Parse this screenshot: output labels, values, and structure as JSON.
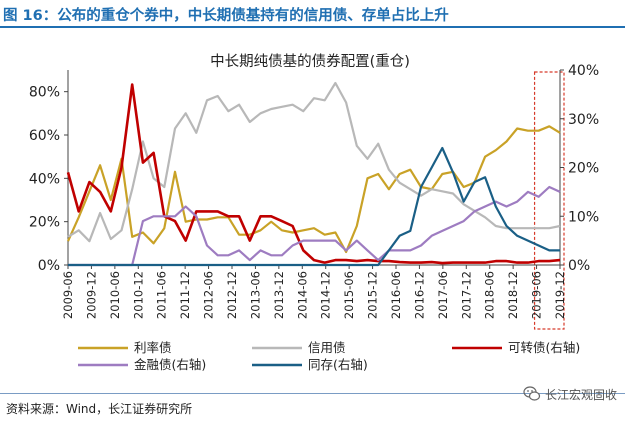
{
  "header": {
    "title": "图 16：公布的重仓个券中，中长期债基持有的信用债、存单占比上升"
  },
  "footer": {
    "source": "资料来源：Wind，长江证券研究所",
    "brand": "长江宏观固收",
    "brand_icon": "wechat-icon"
  },
  "colors": {
    "title_blue": "#1f6fb2",
    "rate_bond": "#c9a227",
    "credit_bond": "#b8b8b8",
    "convertible": "#c00000",
    "financial": "#9e7cc1",
    "ncd": "#1a5f86",
    "highlight_box": "#d63a2a"
  },
  "chart_data": {
    "type": "line",
    "title": "中长期纯债基的债券配置(重仓)",
    "x_tick_labels": [
      "2009-06",
      "2009-12",
      "2010-06",
      "2010-12",
      "2011-06",
      "2011-12",
      "2012-06",
      "2012-12",
      "2013-06",
      "2013-12",
      "2014-06",
      "2014-12",
      "2015-06",
      "2015-12",
      "2016-06",
      "2016-12",
      "2017-06",
      "2017-12",
      "2018-06",
      "2018-12",
      "2019-06",
      "2019-12"
    ],
    "y_left_ticks": [
      "0%",
      "20%",
      "40%",
      "60%",
      "80%"
    ],
    "y_right_ticks": [
      "0%",
      "10%",
      "20%",
      "30%",
      "40%"
    ],
    "y_left_range": [
      0,
      90
    ],
    "y_right_range": [
      0,
      40
    ],
    "grid": false,
    "legend_position": "bottom",
    "highlight_range": [
      "2019-06",
      "2019-12"
    ],
    "series": [
      {
        "name": "利率债",
        "axis": "left",
        "color": "#c9a227",
        "values": [
          11,
          22,
          34,
          46,
          30,
          49,
          13,
          15,
          10,
          17,
          43,
          20,
          21,
          21,
          22,
          22,
          14,
          14,
          16,
          20,
          16,
          15,
          16,
          17,
          14,
          15,
          6,
          18,
          40,
          42,
          35,
          42,
          44,
          36,
          35,
          42,
          43,
          36,
          38,
          50,
          53,
          57,
          63,
          62,
          62,
          64,
          61
        ]
      },
      {
        "name": "信用债",
        "axis": "left",
        "color": "#b8b8b8",
        "values": [
          13,
          16,
          11,
          24,
          12,
          16,
          35,
          57,
          40,
          36,
          63,
          70,
          61,
          76,
          78,
          71,
          74,
          66,
          70,
          72,
          73,
          74,
          71,
          77,
          76,
          84,
          75,
          55,
          49,
          56,
          44,
          38,
          35,
          32,
          35,
          34,
          33,
          28,
          25,
          22,
          18,
          17,
          17,
          17,
          17,
          17,
          18
        ]
      },
      {
        "name": "可转债(右轴)",
        "axis": "right",
        "color": "#c00000",
        "values": [
          19,
          11,
          17,
          15,
          11,
          20,
          37,
          21,
          23,
          10,
          9,
          5,
          11,
          11,
          11,
          10,
          10,
          5,
          10,
          10,
          9,
          8,
          3,
          1,
          0.5,
          1,
          1,
          0.8,
          1,
          0.8,
          0.8,
          0.6,
          0.5,
          0.5,
          0.6,
          0.4,
          0.5,
          0.5,
          0.5,
          0.5,
          0.8,
          0.8,
          0.5,
          0.5,
          0.8,
          0.8,
          1
        ]
      },
      {
        "name": "金融债(右轴)",
        "axis": "right",
        "color": "#9e7cc1",
        "values": [
          0,
          0,
          0,
          0,
          0,
          0,
          0,
          9,
          10,
          10,
          10,
          12,
          10,
          4,
          2,
          2,
          3,
          1,
          3,
          2,
          2,
          4,
          5,
          5,
          5,
          5,
          3,
          5,
          3,
          1,
          3,
          3,
          3,
          4,
          6,
          7,
          8,
          9,
          11,
          12,
          13,
          12,
          13,
          15,
          14,
          16,
          15
        ]
      },
      {
        "name": "同存(右轴)",
        "axis": "right",
        "color": "#1a5f86",
        "values": [
          0,
          0,
          0,
          0,
          0,
          0,
          0,
          0,
          0,
          0,
          0,
          0,
          0,
          0,
          0,
          0,
          0,
          0,
          0,
          0,
          0,
          0,
          0,
          0,
          0,
          0,
          0,
          0,
          0,
          0,
          3,
          6,
          7,
          16,
          20,
          24,
          19,
          13,
          17,
          18,
          12,
          8,
          6,
          5,
          4,
          3,
          3
        ]
      }
    ]
  }
}
